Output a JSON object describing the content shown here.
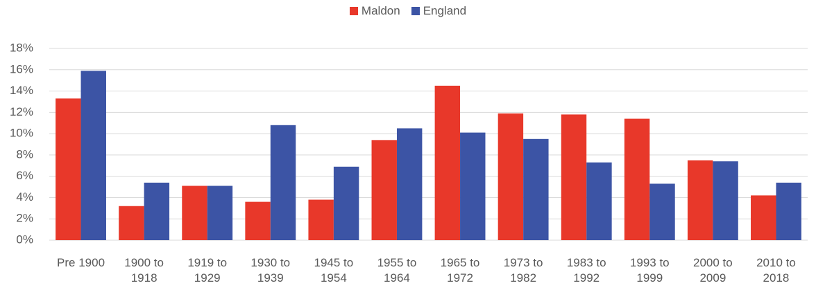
{
  "chart_data": {
    "type": "bar",
    "categories": [
      "Pre 1900",
      "1900 to 1918",
      "1919 to 1929",
      "1930 to 1939",
      "1945 to 1954",
      "1955 to 1964",
      "1965 to 1972",
      "1973 to 1982",
      "1983 to 1992",
      "1993 to 1999",
      "2000 to 2009",
      "2010 to 2018"
    ],
    "series": [
      {
        "name": "Maldon",
        "color": "#e8382a",
        "values": [
          13.3,
          3.2,
          5.1,
          3.6,
          3.8,
          9.4,
          14.5,
          11.9,
          11.8,
          11.4,
          7.5,
          4.2
        ]
      },
      {
        "name": "England",
        "color": "#3c54a5",
        "values": [
          15.9,
          5.4,
          5.1,
          10.8,
          6.9,
          10.5,
          10.1,
          9.5,
          7.3,
          5.3,
          7.4,
          5.4
        ]
      }
    ],
    "ylim": [
      0,
      18
    ],
    "yticks": [
      {
        "value": 0,
        "label": "0%"
      },
      {
        "value": 2,
        "label": "2%"
      },
      {
        "value": 4,
        "label": "4%"
      },
      {
        "value": 6,
        "label": "6%"
      },
      {
        "value": 8,
        "label": "8%"
      },
      {
        "value": 10,
        "label": "10%"
      },
      {
        "value": 12,
        "label": "12%"
      },
      {
        "value": 14,
        "label": "14%"
      },
      {
        "value": 16,
        "label": "16%"
      },
      {
        "value": 18,
        "label": "18%"
      }
    ],
    "grid": true,
    "legend": "top"
  }
}
